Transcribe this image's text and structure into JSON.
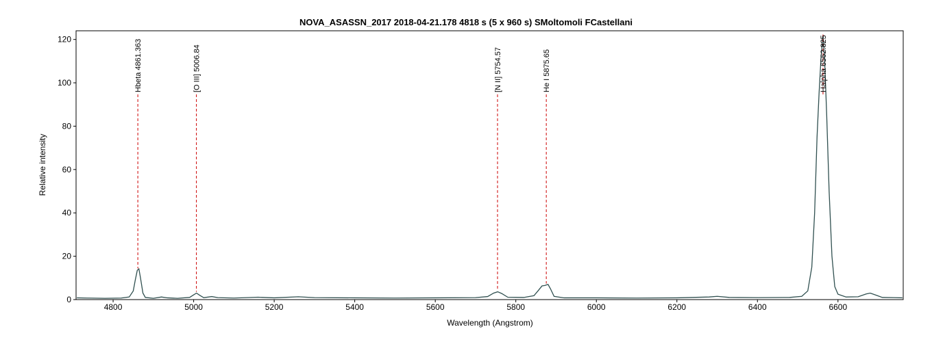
{
  "chart_data": {
    "type": "line",
    "title": "NOVA_ASASSN_2017  2018-04-21.178  4818 s (5 x 960 s)   SMoltomoli FCastellani",
    "xlabel": "Wavelength (Angstrom)",
    "ylabel": "Relative intensity",
    "x": [
      4710,
      4740,
      4780,
      4820,
      4840,
      4850,
      4855,
      4860,
      4864,
      4868,
      4874,
      4880,
      4900,
      4920,
      4935,
      4960,
      4990,
      5000,
      5007,
      5015,
      5025,
      5045,
      5060,
      5100,
      5160,
      5200,
      5260,
      5300,
      5400,
      5500,
      5600,
      5700,
      5730,
      5745,
      5755,
      5765,
      5780,
      5820,
      5845,
      5855,
      5865,
      5872,
      5880,
      5886,
      5895,
      5920,
      6000,
      6100,
      6200,
      6280,
      6300,
      6330,
      6400,
      6480,
      6510,
      6525,
      6535,
      6542,
      6548,
      6553,
      6558,
      6563,
      6567,
      6572,
      6578,
      6585,
      6592,
      6600,
      6620,
      6650,
      6670,
      6680,
      6695,
      6710,
      6740,
      6760
    ],
    "series": [
      {
        "color": "#2f4f4f",
        "values": [
          0.8,
          0.7,
          0.6,
          0.7,
          1.2,
          4,
          9,
          13.5,
          14.2,
          10,
          3,
          1,
          0.6,
          1.2,
          0.8,
          0.6,
          1,
          2.2,
          3,
          2,
          0.9,
          1.4,
          0.9,
          0.7,
          1.1,
          0.8,
          1.3,
          0.9,
          0.8,
          0.7,
          0.8,
          0.9,
          1.4,
          3,
          3.6,
          2.8,
          1.1,
          1,
          1.8,
          4,
          6.3,
          6.5,
          7,
          5,
          1.5,
          0.8,
          0.8,
          0.7,
          0.8,
          1.2,
          1.5,
          1,
          0.9,
          1,
          1.5,
          4,
          15,
          40,
          75,
          95,
          112,
          122,
          110,
          85,
          50,
          20,
          6,
          2.5,
          1.2,
          1.3,
          2.6,
          3,
          2,
          1,
          0.9,
          0.8
        ]
      }
    ],
    "annotations": [
      {
        "label": "Hbeta 4861.363",
        "x": 4861.363,
        "color": "#cc0000"
      },
      {
        "label": "[O III] 5006.84",
        "x": 5006.84,
        "color": "#cc0000"
      },
      {
        "label": "[N II] 5754.57",
        "x": 5754.57,
        "color": "#cc0000"
      },
      {
        "label": "He I 5875.65",
        "x": 5875.65,
        "color": "#cc0000"
      },
      {
        "label": "Halpha 6562.825",
        "x": 6562.825,
        "color": "#cc0000"
      }
    ],
    "xlim": [
      4708,
      6762
    ],
    "ylim": [
      0,
      124
    ],
    "xticks": [
      4800,
      5000,
      5200,
      5400,
      5600,
      5800,
      6000,
      6200,
      6400,
      6600
    ],
    "yticks": [
      0,
      20,
      40,
      60,
      80,
      100,
      120
    ],
    "grid": false
  }
}
